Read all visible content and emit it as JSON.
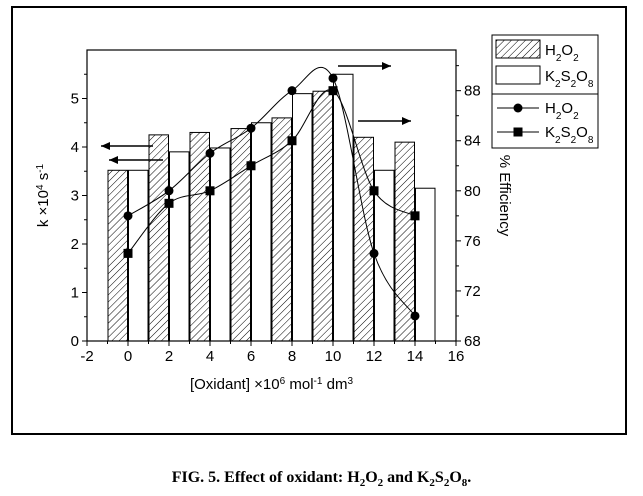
{
  "caption": {
    "prefix": "FIG. 5. Effect of oxidant: H",
    "s1": "2",
    "t1": "O",
    "s2": "2",
    "t2": " and K",
    "s3": "2",
    "t3": "S",
    "s4": "2",
    "t4": "O",
    "s5": "8",
    "t5": "."
  },
  "chart_data": {
    "type": "bar",
    "x_axis": {
      "label_main": "[Oxidant] ×10",
      "label_exp1": "6",
      "label_mid": " mol",
      "label_exp2": "-1",
      "label_end": " dm",
      "label_exp3": "3",
      "range": [
        -2,
        16
      ],
      "ticks": [
        "-2",
        "0",
        "2",
        "4",
        "6",
        "8",
        "10",
        "12",
        "14",
        "16"
      ]
    },
    "y_left": {
      "label_main": "k ×10",
      "label_exp1": "4",
      "label_mid": " s",
      "label_exp2": "-1",
      "range": [
        0,
        6
      ],
      "ticks": [
        "0",
        "1",
        "2",
        "3",
        "4",
        "5"
      ]
    },
    "y_right": {
      "label": "% Efficiency",
      "range": [
        68,
        91.25
      ],
      "ticks": [
        "68",
        "72",
        "76",
        "80",
        "84",
        "88"
      ]
    },
    "x": [
      0,
      2,
      4,
      6,
      8,
      10,
      12,
      14
    ],
    "bars": [
      {
        "legend_main": "H",
        "sub1": "2",
        "mid": "O",
        "sub2": "2",
        "pattern": "hatched",
        "values": [
          3.52,
          4.25,
          4.3,
          4.38,
          4.6,
          5.15,
          4.2,
          4.1
        ]
      },
      {
        "legend_main": "K",
        "sub1": "2",
        "mid": "S",
        "sub2": "2",
        "end": "O",
        "sub3": "8",
        "pattern": "open",
        "values": [
          3.52,
          3.9,
          3.98,
          4.5,
          5.1,
          5.5,
          3.52,
          3.15
        ]
      }
    ],
    "lines": [
      {
        "legend_main": "H",
        "sub1": "2",
        "mid": "O",
        "sub2": "2",
        "marker": "circle",
        "axis": "right",
        "values": [
          78.0,
          80.0,
          83.0,
          85.0,
          88.0,
          89.0,
          75.0,
          70.0
        ]
      },
      {
        "legend_main": "K",
        "sub1": "2",
        "mid": "S",
        "sub2": "2",
        "end": "O",
        "sub3": "8",
        "marker": "square",
        "axis": "right",
        "values": [
          75.0,
          79.0,
          80.0,
          82.0,
          84.0,
          88.0,
          80.0,
          78.0
        ]
      }
    ],
    "colors": {
      "ink": "#000000",
      "bar_fill": "#ffffff"
    }
  }
}
